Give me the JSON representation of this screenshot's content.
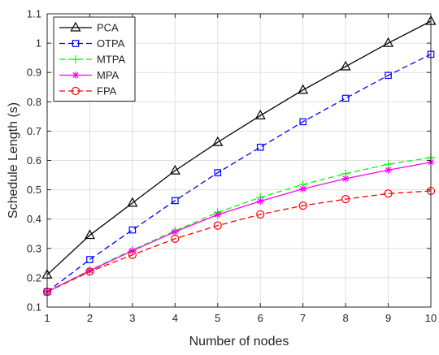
{
  "chart_data": {
    "type": "line",
    "title": "",
    "xlabel": "Number of nodes",
    "ylabel": "Schedule Length (s)",
    "x": [
      1,
      2,
      3,
      4,
      5,
      6,
      7,
      8,
      9,
      10
    ],
    "xlim": [
      1,
      10
    ],
    "ylim": [
      0.1,
      1.1
    ],
    "xticks": [
      1,
      2,
      3,
      4,
      5,
      6,
      7,
      8,
      9,
      10
    ],
    "xtick_labels": [
      "1",
      "2",
      "3",
      "4",
      "5",
      "6",
      "7",
      "8",
      "9",
      "10"
    ],
    "yticks": [
      0.1,
      0.2,
      0.3,
      0.4,
      0.5,
      0.6,
      0.7,
      0.8,
      0.9,
      1.0,
      1.1
    ],
    "ytick_labels": [
      "0.1",
      "0.2",
      "0.3",
      "0.4",
      "0.5",
      "0.6",
      "0.7",
      "0.8",
      "0.9",
      "1",
      "1.1"
    ],
    "grid": true,
    "legend_position": "top-left",
    "series": [
      {
        "name": "PCA",
        "color": "#000000",
        "dash": "solid",
        "marker": "triangle",
        "values": [
          0.21,
          0.345,
          0.455,
          0.565,
          0.662,
          0.753,
          0.84,
          0.92,
          1.0,
          1.075
        ]
      },
      {
        "name": "OTPA",
        "color": "#0000ff",
        "dash": "dashed",
        "marker": "square",
        "values": [
          0.152,
          0.262,
          0.363,
          0.463,
          0.558,
          0.645,
          0.732,
          0.812,
          0.89,
          0.962
        ]
      },
      {
        "name": "MTPA",
        "color": "#00ff00",
        "dash": "dashed",
        "marker": "plus",
        "values": [
          0.152,
          0.226,
          0.295,
          0.36,
          0.423,
          0.474,
          0.518,
          0.555,
          0.587,
          0.61
        ]
      },
      {
        "name": "MPA",
        "color": "#ff00ff",
        "dash": "solid",
        "marker": "asterisk",
        "values": [
          0.152,
          0.224,
          0.292,
          0.357,
          0.415,
          0.461,
          0.503,
          0.538,
          0.567,
          0.594
        ]
      },
      {
        "name": "FPA",
        "color": "#ff0000",
        "dash": "dashed",
        "marker": "circle",
        "values": [
          0.152,
          0.221,
          0.278,
          0.333,
          0.378,
          0.416,
          0.446,
          0.468,
          0.487,
          0.496
        ]
      }
    ]
  }
}
